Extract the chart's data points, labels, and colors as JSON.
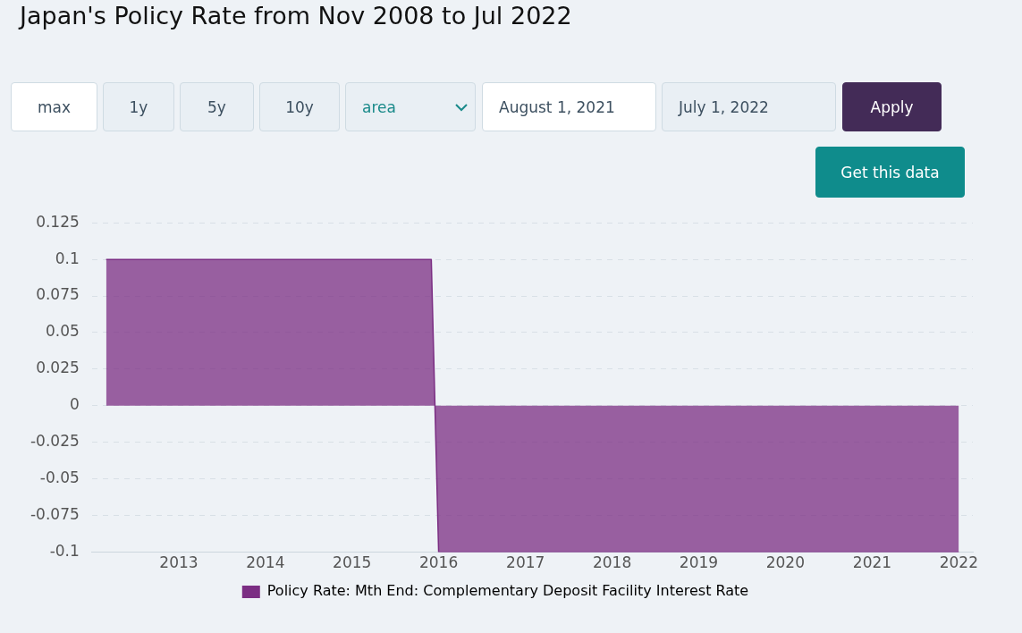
{
  "chart_data": {
    "type": "area",
    "title": "Japan's Policy Rate from Nov 2008 to Jul 2022",
    "annotations": [
      "max",
      "1y",
      "5y",
      "10y",
      "area",
      "August 1, 2021",
      "July 1, 2022",
      "Apply",
      "Get this data"
    ],
    "series": [
      {
        "name": "Policy Rate: Mth End: Complementary Deposit Facility Interest Rate",
        "color": "#7b2e83",
        "x": [
          "2012-03",
          "2015-12",
          "2016-01",
          "2022-01"
        ],
        "values": [
          0.1,
          0.1,
          -0.1,
          -0.1
        ]
      }
    ],
    "xlim": [
      "2012-01",
      "2022-03"
    ],
    "xticks": [
      "2013",
      "2014",
      "2015",
      "2016",
      "2017",
      "2018",
      "2019",
      "2020",
      "2021",
      "2022"
    ],
    "ylim": [
      -0.1,
      0.125
    ],
    "yticks": [
      -0.1,
      -0.075,
      -0.05,
      -0.025,
      0,
      0.025,
      0.05,
      0.075,
      0.1,
      0.125
    ],
    "grid": "y",
    "legend": "bottom"
  }
}
